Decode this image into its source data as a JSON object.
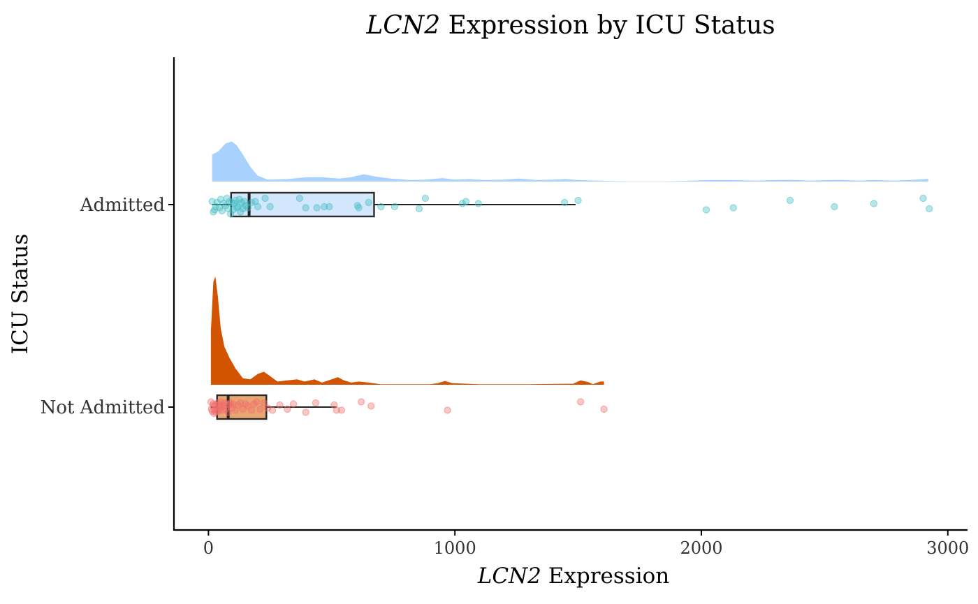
{
  "chart_data": {
    "type": "raincloud",
    "title_italic": "LCN2",
    "title_rest": " Expression by ICU Status",
    "xlabel_italic": "LCN2",
    "xlabel_rest": " Expression",
    "ylabel": "ICU Status",
    "xlim": [
      -140,
      3080
    ],
    "x_ticks": [
      0,
      1000,
      2000,
      3000
    ],
    "x_tick_labels": [
      "0",
      "1000",
      "2000",
      "3000"
    ],
    "grid": false,
    "legend": "none",
    "groups": [
      {
        "name": "Admitted",
        "fill_density": "#a8d1fd",
        "fill_box": "#d2e6fc",
        "point_color": "#3fbec2",
        "box": {
          "whisker_low": 15,
          "q1": 92,
          "median": 165,
          "q3": 672,
          "whisker_high": 1490
        },
        "density": [
          [
            15,
            0.55
          ],
          [
            40,
            0.62
          ],
          [
            70,
            0.78
          ],
          [
            95,
            0.82
          ],
          [
            115,
            0.74
          ],
          [
            140,
            0.55
          ],
          [
            170,
            0.3
          ],
          [
            200,
            0.12
          ],
          [
            240,
            0.04
          ],
          [
            320,
            0.05
          ],
          [
            400,
            0.09
          ],
          [
            460,
            0.09
          ],
          [
            530,
            0.06
          ],
          [
            580,
            0.09
          ],
          [
            630,
            0.15
          ],
          [
            680,
            0.1
          ],
          [
            740,
            0.06
          ],
          [
            820,
            0.03
          ],
          [
            880,
            0.04
          ],
          [
            950,
            0.07
          ],
          [
            1000,
            0.04
          ],
          [
            1060,
            0.05
          ],
          [
            1120,
            0.03
          ],
          [
            1200,
            0.04
          ],
          [
            1260,
            0.06
          ],
          [
            1330,
            0.03
          ],
          [
            1400,
            0.04
          ],
          [
            1450,
            0.05
          ],
          [
            1500,
            0.03
          ],
          [
            1600,
            0.015
          ],
          [
            1700,
            0.005
          ],
          [
            1760,
            0.005
          ],
          [
            1860,
            0.005
          ],
          [
            1950,
            0.015
          ],
          [
            2030,
            0.03
          ],
          [
            2120,
            0.03
          ],
          [
            2220,
            0.02
          ],
          [
            2300,
            0.03
          ],
          [
            2360,
            0.035
          ],
          [
            2440,
            0.02
          ],
          [
            2520,
            0.03
          ],
          [
            2560,
            0.035
          ],
          [
            2640,
            0.02
          ],
          [
            2700,
            0.03
          ],
          [
            2780,
            0.02
          ],
          [
            2840,
            0.03
          ],
          [
            2920,
            0.055
          ]
        ],
        "points": [
          [
            15,
            0.03
          ],
          [
            20,
            -0.07
          ],
          [
            25,
            -0.05
          ],
          [
            30,
            -0.02
          ],
          [
            35,
            0.02
          ],
          [
            45,
            -0.03
          ],
          [
            50,
            0.05
          ],
          [
            55,
            -0.06
          ],
          [
            60,
            0.01
          ],
          [
            70,
            -0.01
          ],
          [
            75,
            0.06
          ],
          [
            80,
            -0.04
          ],
          [
            85,
            0.03
          ],
          [
            90,
            -0.09
          ],
          [
            95,
            0.02
          ],
          [
            100,
            -0.05
          ],
          [
            105,
            0.01
          ],
          [
            110,
            0.04
          ],
          [
            115,
            -0.03
          ],
          [
            120,
            -0.02
          ],
          [
            125,
            0.05
          ],
          [
            130,
            -0.07
          ],
          [
            135,
            0.02
          ],
          [
            140,
            -0.04
          ],
          [
            145,
            0.03
          ],
          [
            150,
            -0.01
          ],
          [
            160,
            -0.03
          ],
          [
            175,
            0.02
          ],
          [
            190,
            0.03
          ],
          [
            200,
            -0.02
          ],
          [
            230,
            0.06
          ],
          [
            250,
            -0.02
          ],
          [
            370,
            0.06
          ],
          [
            395,
            -0.03
          ],
          [
            440,
            -0.03
          ],
          [
            470,
            -0.02
          ],
          [
            490,
            -0.02
          ],
          [
            605,
            -0.01
          ],
          [
            610,
            -0.03
          ],
          [
            650,
            0.02
          ],
          [
            700,
            -0.02
          ],
          [
            755,
            -0.02
          ],
          [
            855,
            -0.04
          ],
          [
            880,
            0.06
          ],
          [
            1030,
            0.01
          ],
          [
            1045,
            0.03
          ],
          [
            1095,
            0.01
          ],
          [
            1445,
            0.02
          ],
          [
            1500,
            0.04
          ],
          [
            2020,
            -0.05
          ],
          [
            2130,
            -0.03
          ],
          [
            2360,
            0.04
          ],
          [
            2540,
            -0.02
          ],
          [
            2700,
            0.01
          ],
          [
            2900,
            0.06
          ],
          [
            2925,
            -0.04
          ]
        ]
      },
      {
        "name": "Not Admitted",
        "fill_density": "#d35400",
        "fill_box": "#e8a772",
        "point_color": "#f26b6b",
        "box": {
          "whisker_low": 10,
          "q1": 35,
          "median": 80,
          "q3": 235,
          "whisker_high": 520
        },
        "density": [
          [
            10,
            0.5
          ],
          [
            20,
            0.95
          ],
          [
            28,
            1.0
          ],
          [
            38,
            0.82
          ],
          [
            50,
            0.52
          ],
          [
            65,
            0.35
          ],
          [
            85,
            0.25
          ],
          [
            110,
            0.15
          ],
          [
            140,
            0.06
          ],
          [
            170,
            0.05
          ],
          [
            200,
            0.1
          ],
          [
            225,
            0.12
          ],
          [
            250,
            0.08
          ],
          [
            280,
            0.03
          ],
          [
            320,
            0.04
          ],
          [
            360,
            0.05
          ],
          [
            390,
            0.03
          ],
          [
            430,
            0.05
          ],
          [
            460,
            0.02
          ],
          [
            500,
            0.05
          ],
          [
            525,
            0.07
          ],
          [
            550,
            0.04
          ],
          [
            580,
            0.02
          ],
          [
            610,
            0.03
          ],
          [
            650,
            0.02
          ],
          [
            700,
            0.005
          ],
          [
            800,
            0.005
          ],
          [
            900,
            0.005
          ],
          [
            930,
            0.015
          ],
          [
            960,
            0.035
          ],
          [
            990,
            0.015
          ],
          [
            1100,
            0.005
          ],
          [
            1300,
            0.005
          ],
          [
            1480,
            0.01
          ],
          [
            1510,
            0.04
          ],
          [
            1540,
            0.025
          ],
          [
            1560,
            0.005
          ],
          [
            1590,
            0.03
          ],
          [
            1605,
            0.03
          ]
        ],
        "points": [
          [
            10,
            0.05
          ],
          [
            12,
            -0.02
          ],
          [
            15,
            -0.04
          ],
          [
            18,
            0.01
          ],
          [
            20,
            0.03
          ],
          [
            22,
            -0.06
          ],
          [
            25,
            -0.03
          ],
          [
            28,
            0.02
          ],
          [
            30,
            -0.05
          ],
          [
            33,
            0.01
          ],
          [
            35,
            -0.03
          ],
          [
            38,
            0.04
          ],
          [
            40,
            -0.04
          ],
          [
            45,
            0.02
          ],
          [
            48,
            -0.01
          ],
          [
            50,
            0.05
          ],
          [
            55,
            -0.03
          ],
          [
            60,
            0.01
          ],
          [
            65,
            0.04
          ],
          [
            70,
            -0.02
          ],
          [
            75,
            0.03
          ],
          [
            80,
            -0.05
          ],
          [
            85,
            0.02
          ],
          [
            90,
            0.04
          ],
          [
            95,
            -0.01
          ],
          [
            100,
            0.03
          ],
          [
            110,
            -0.03
          ],
          [
            120,
            0.02
          ],
          [
            130,
            0.04
          ],
          [
            140,
            -0.02
          ],
          [
            150,
            0.03
          ],
          [
            160,
            0.01
          ],
          [
            175,
            -0.03
          ],
          [
            185,
            0.03
          ],
          [
            195,
            0.05
          ],
          [
            210,
            -0.02
          ],
          [
            225,
            0.04
          ],
          [
            240,
            -0.01
          ],
          [
            260,
            -0.03
          ],
          [
            290,
            0.02
          ],
          [
            320,
            -0.02
          ],
          [
            345,
            0.03
          ],
          [
            395,
            -0.05
          ],
          [
            435,
            0.04
          ],
          [
            510,
            0.02
          ],
          [
            520,
            -0.03
          ],
          [
            540,
            -0.03
          ],
          [
            620,
            0.05
          ],
          [
            660,
            0.01
          ],
          [
            970,
            -0.03
          ],
          [
            1510,
            0.05
          ],
          [
            1605,
            -0.02
          ]
        ]
      }
    ]
  }
}
